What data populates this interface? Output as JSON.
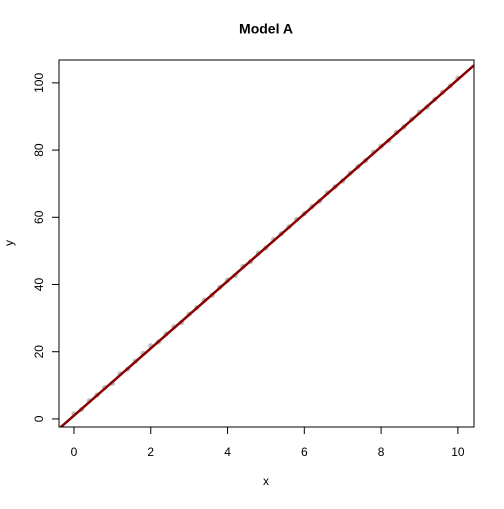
{
  "chart_data": {
    "type": "scatter",
    "title": "Model A",
    "x_label": "x",
    "y_label": "y",
    "x": [
      0,
      0.2,
      0.4,
      0.6,
      0.8,
      1,
      1.2,
      1.4,
      1.6,
      1.8,
      2,
      2.2,
      2.4,
      2.6,
      2.8,
      3,
      3.2,
      3.4,
      3.6,
      3.8,
      4,
      4.2,
      4.4,
      4.6,
      4.8,
      5,
      5.2,
      5.4,
      5.6,
      5.8,
      6,
      6.2,
      6.4,
      6.6,
      6.8,
      7,
      7.2,
      7.4,
      7.6,
      7.8,
      8,
      8.2,
      8.4,
      8.6,
      8.8,
      9,
      9.2,
      9.4,
      9.6,
      9.8,
      10
    ],
    "values": [
      1.5,
      2.8,
      5.4,
      7.1,
      9.3,
      10.6,
      13.4,
      14.8,
      17.2,
      19.5,
      21.8,
      22.9,
      25.3,
      27.4,
      28.7,
      31.2,
      33.1,
      35.4,
      36.8,
      39.2,
      41.3,
      42.7,
      45.4,
      46.8,
      49.3,
      50.9,
      53.4,
      55.1,
      57.2,
      59.4,
      61.1,
      63.2,
      64.8,
      67.3,
      69.1,
      70.8,
      73.2,
      75.1,
      76.9,
      79.4,
      81.2,
      82.8,
      85.3,
      86.9,
      89.2,
      91.3,
      92.8,
      95.1,
      97.2,
      99.1,
      101.4
    ],
    "color": "#bebebe",
    "fit_line": {
      "intercept": 1,
      "slope": 10,
      "color": "#8b0000"
    },
    "xlim": [
      -0.39,
      10.42
    ],
    "xticks": [
      0,
      2,
      4,
      6,
      8,
      10
    ],
    "ylim": [
      -2.4,
      106.8
    ],
    "yticks": [
      0,
      20,
      40,
      60,
      80,
      100
    ]
  }
}
